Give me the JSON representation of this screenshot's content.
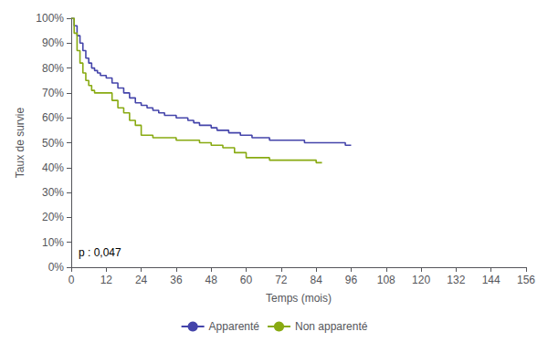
{
  "chart_data": {
    "type": "step",
    "xlabel": "Temps (mois)",
    "ylabel": "Taux de survie",
    "annotation": "p : 0,047",
    "xlim": [
      0,
      156
    ],
    "ylim": [
      0,
      1.0
    ],
    "xticks": [
      0,
      12,
      24,
      36,
      48,
      60,
      72,
      84,
      96,
      108,
      120,
      132,
      144,
      156
    ],
    "yticks": [
      {
        "value": 0.0,
        "label": "0%"
      },
      {
        "value": 0.1,
        "label": "10%"
      },
      {
        "value": 0.2,
        "label": "20%"
      },
      {
        "value": 0.3,
        "label": "30%"
      },
      {
        "value": 0.4,
        "label": "40%"
      },
      {
        "value": 0.5,
        "label": "50%"
      },
      {
        "value": 0.6,
        "label": "60%"
      },
      {
        "value": 0.7,
        "label": "70%"
      },
      {
        "value": 0.8,
        "label": "80%"
      },
      {
        "value": 0.9,
        "label": "90%"
      },
      {
        "value": 1.0,
        "label": "100%"
      }
    ],
    "grid": false,
    "legend": "bottom",
    "series": [
      {
        "name": "Apparenté",
        "color": "#4444aa",
        "x": [
          0,
          1,
          2,
          3,
          4,
          5,
          6,
          7,
          8,
          9,
          10,
          11,
          12,
          14,
          16,
          18,
          20,
          22,
          24,
          26,
          28,
          30,
          32,
          34,
          36,
          38,
          40,
          42,
          44,
          46,
          48,
          50,
          52,
          54,
          56,
          58,
          60,
          62,
          64,
          66,
          68,
          70,
          72,
          74,
          76,
          78,
          80,
          82,
          84,
          86,
          88,
          90,
          92,
          94,
          96
        ],
        "values": [
          1.0,
          0.97,
          0.93,
          0.9,
          0.87,
          0.84,
          0.82,
          0.8,
          0.79,
          0.78,
          0.77,
          0.77,
          0.76,
          0.74,
          0.72,
          0.7,
          0.68,
          0.66,
          0.65,
          0.64,
          0.63,
          0.62,
          0.61,
          0.61,
          0.6,
          0.6,
          0.59,
          0.58,
          0.57,
          0.57,
          0.56,
          0.55,
          0.55,
          0.54,
          0.54,
          0.53,
          0.53,
          0.52,
          0.52,
          0.52,
          0.51,
          0.51,
          0.51,
          0.51,
          0.51,
          0.51,
          0.5,
          0.5,
          0.5,
          0.5,
          0.5,
          0.5,
          0.5,
          0.49,
          0.49
        ]
      },
      {
        "name": "Non apparenté",
        "color": "#88aa11",
        "x": [
          0,
          1,
          2,
          3,
          4,
          5,
          6,
          7,
          8,
          9,
          10,
          11,
          12,
          14,
          16,
          18,
          20,
          22,
          24,
          26,
          28,
          30,
          32,
          36,
          40,
          44,
          48,
          52,
          56,
          60,
          62,
          64,
          66,
          68,
          70,
          72,
          74,
          76,
          78,
          80,
          82,
          84,
          86
        ],
        "values": [
          1.0,
          0.94,
          0.87,
          0.82,
          0.78,
          0.75,
          0.73,
          0.71,
          0.7,
          0.7,
          0.7,
          0.7,
          0.7,
          0.67,
          0.64,
          0.62,
          0.59,
          0.57,
          0.53,
          0.53,
          0.52,
          0.52,
          0.52,
          0.51,
          0.51,
          0.5,
          0.49,
          0.48,
          0.46,
          0.44,
          0.44,
          0.44,
          0.44,
          0.43,
          0.43,
          0.43,
          0.43,
          0.43,
          0.43,
          0.43,
          0.43,
          0.42,
          0.42
        ]
      }
    ]
  }
}
